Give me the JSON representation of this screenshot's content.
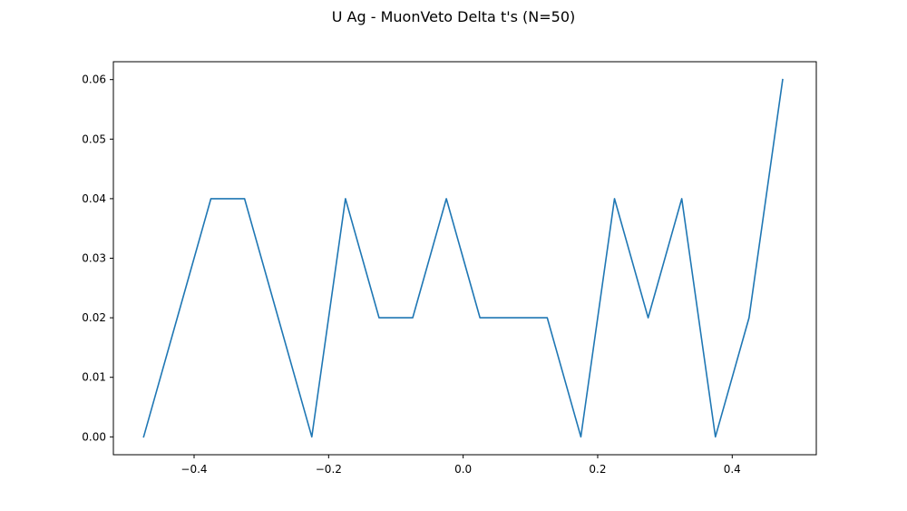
{
  "chart_data": {
    "type": "line",
    "title": "U Ag - MuonVeto Delta t's (N=50)",
    "xlabel": "",
    "ylabel": "",
    "xlim": [
      -0.52,
      0.525
    ],
    "ylim": [
      -0.003,
      0.063
    ],
    "xticks": [
      -0.4,
      -0.2,
      0.0,
      0.2,
      0.4
    ],
    "xtick_labels": [
      "−0.4",
      "−0.2",
      "0.0",
      "0.2",
      "0.4"
    ],
    "yticks": [
      0.0,
      0.01,
      0.02,
      0.03,
      0.04,
      0.05,
      0.06
    ],
    "ytick_labels": [
      "0.00",
      "0.01",
      "0.02",
      "0.03",
      "0.04",
      "0.05",
      "0.06"
    ],
    "grid": false,
    "series": [
      {
        "color": "#1f77b4",
        "x": [
          -0.475,
          -0.425,
          -0.375,
          -0.325,
          -0.275,
          -0.225,
          -0.175,
          -0.125,
          -0.075,
          -0.025,
          0.025,
          0.075,
          0.125,
          0.175,
          0.225,
          0.275,
          0.325,
          0.375,
          0.425,
          0.475
        ],
        "y": [
          0.0,
          0.02,
          0.04,
          0.04,
          0.02,
          0.0,
          0.04,
          0.02,
          0.02,
          0.04,
          0.02,
          0.02,
          0.02,
          0.0,
          0.04,
          0.02,
          0.04,
          0.0,
          0.02,
          0.06
        ]
      }
    ]
  }
}
